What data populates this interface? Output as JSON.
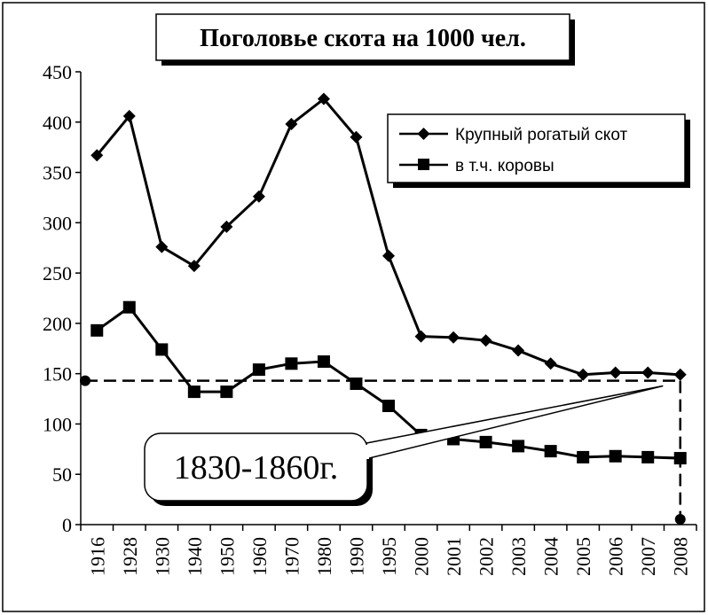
{
  "chart_data": {
    "type": "line",
    "title": "Поголовье скота на 1000 чел.",
    "xlabel": "",
    "ylabel": "",
    "categories": [
      "1916",
      "1928",
      "1930",
      "1940",
      "1950",
      "1960",
      "1970",
      "1980",
      "1990",
      "1995",
      "2000",
      "2001",
      "2002",
      "2003",
      "2004",
      "2005",
      "2006",
      "2007",
      "2008"
    ],
    "ylim": [
      0,
      450
    ],
    "yticks": [
      0,
      50,
      100,
      150,
      200,
      250,
      300,
      350,
      400,
      450
    ],
    "grid": false,
    "legend_position": "top-right",
    "series": [
      {
        "name": "Крупный рогатый скот",
        "marker": "diamond",
        "values": [
          367,
          406,
          276,
          257,
          296,
          326,
          398,
          423,
          385,
          267,
          187,
          186,
          183,
          173,
          160,
          149,
          151,
          151,
          149
        ]
      },
      {
        "name": "в т.ч. коровы",
        "marker": "square",
        "values": [
          193,
          216,
          174,
          132,
          132,
          154,
          160,
          162,
          140,
          118,
          89,
          85,
          82,
          78,
          73,
          67,
          68,
          67,
          66
        ]
      }
    ],
    "reference_line": {
      "value": 143,
      "style": "dashed"
    },
    "annotation": {
      "text": "1830-1860г."
    }
  }
}
